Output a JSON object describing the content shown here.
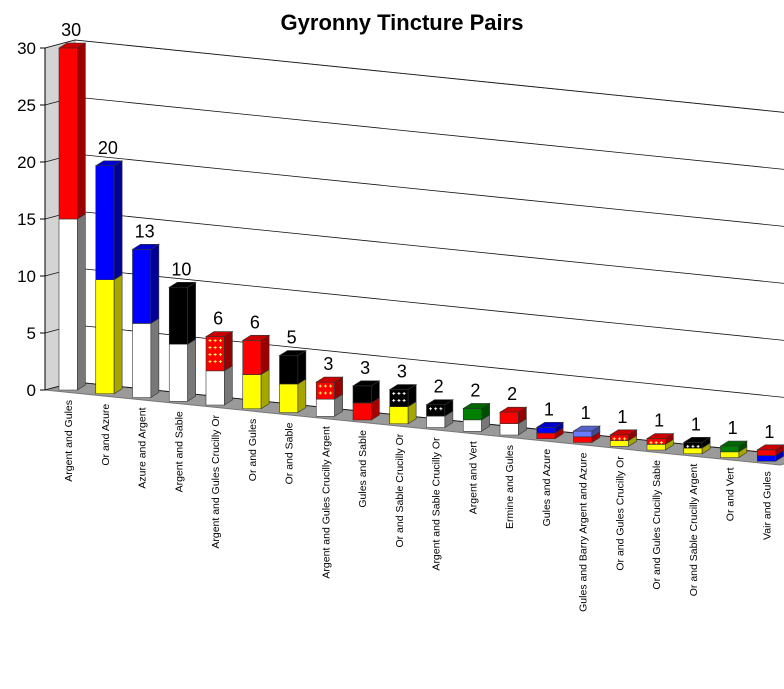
{
  "chart_data": {
    "type": "bar",
    "title": "Gyronny Tincture Pairs",
    "ylim": [
      0,
      30
    ],
    "yticks": [
      0,
      5,
      10,
      15,
      20,
      25,
      30
    ],
    "grid": true,
    "legend": "none",
    "colors": {
      "Argent": "#ffffff",
      "Gules": "#ff0000",
      "Or": "#ffff00",
      "Azure": "#0000ff",
      "Sable": "#000000",
      "Vert": "#008000",
      "Ermine": "#ffffff",
      "Vair": "#0000ff",
      "Barry": "#6a7bff"
    },
    "categories": [
      "Argent and Gules",
      "Or and Azure",
      "Azure and Argent",
      "Argent and Sable",
      "Argent and Gules Crucilly Or",
      "Or and Gules",
      "Or and Sable",
      "Argent and Gules Crucilly Argent",
      "Gules and Sable",
      "Or and Sable Crucilly Or",
      "Argent and Sable Crucilly Or",
      "Argent and Vert",
      "Ermine and Gules",
      "Gules and Azure",
      "Gules and Barry Argent and Azure",
      "Or and Gules Crucilly Or",
      "Or and Gules Crucilly Sable",
      "Or and Sable Crucilly Argent",
      "Or and Vert",
      "Vair and Gules"
    ],
    "values": [
      30,
      20,
      13,
      10,
      6,
      6,
      5,
      3,
      3,
      3,
      2,
      2,
      2,
      1,
      1,
      1,
      1,
      1,
      1,
      1
    ],
    "value_labels": [
      "30",
      "20",
      "13",
      "10",
      "6",
      "6",
      "5",
      "3",
      "3",
      "3",
      "2",
      "2",
      "2",
      "1",
      "1",
      "1",
      "1",
      "1",
      "1",
      "1"
    ],
    "bar_tinctures": [
      [
        "Argent",
        "Gules"
      ],
      [
        "Or",
        "Azure"
      ],
      [
        "Argent",
        "Azure"
      ],
      [
        "Argent",
        "Sable"
      ],
      [
        "Argent",
        "Gules"
      ],
      [
        "Or",
        "Gules"
      ],
      [
        "Or",
        "Sable"
      ],
      [
        "Argent",
        "Gules"
      ],
      [
        "Gules",
        "Sable"
      ],
      [
        "Or",
        "Sable"
      ],
      [
        "Argent",
        "Sable"
      ],
      [
        "Argent",
        "Vert"
      ],
      [
        "Ermine",
        "Gules"
      ],
      [
        "Gules",
        "Azure"
      ],
      [
        "Gules",
        "Barry"
      ],
      [
        "Or",
        "Gules"
      ],
      [
        "Or",
        "Gules"
      ],
      [
        "Or",
        "Sable"
      ],
      [
        "Or",
        "Vert"
      ],
      [
        "Vair",
        "Gules"
      ]
    ],
    "crucilly": [
      false,
      false,
      false,
      false,
      true,
      false,
      false,
      true,
      false,
      true,
      true,
      false,
      false,
      false,
      false,
      true,
      true,
      true,
      false,
      false
    ]
  }
}
